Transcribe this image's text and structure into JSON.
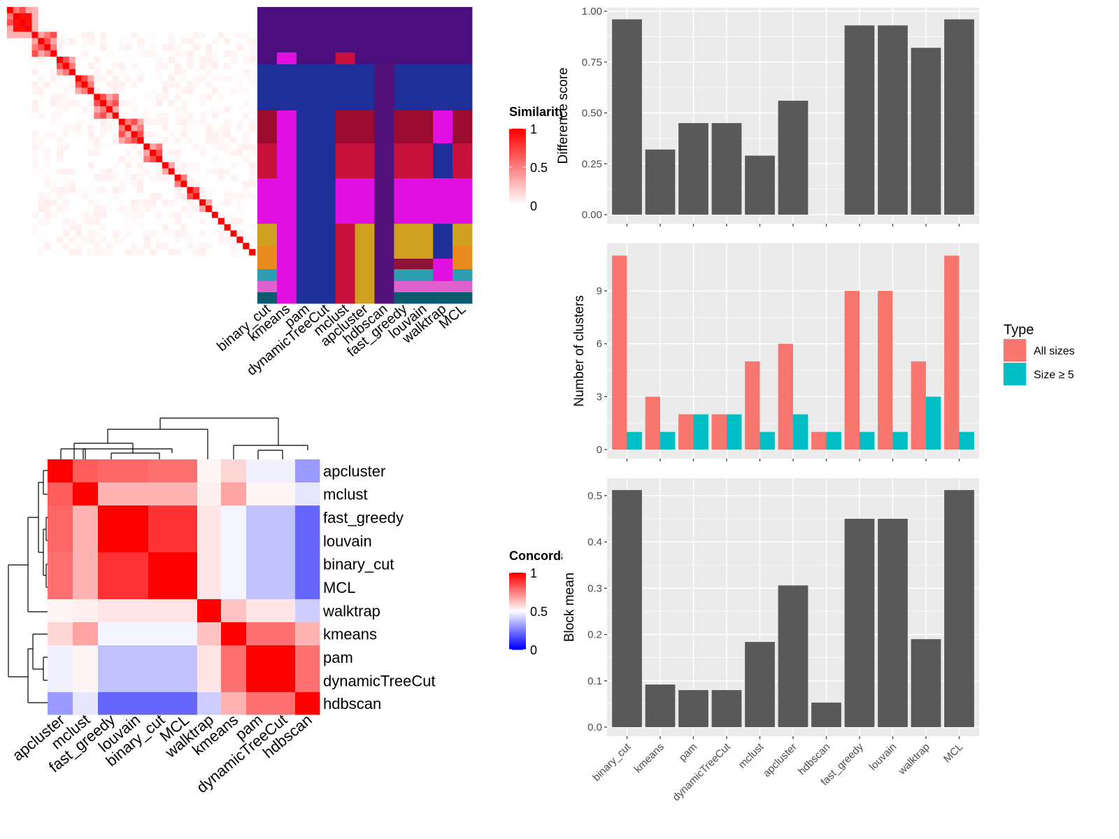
{
  "methods": [
    "binary_cut",
    "kmeans",
    "pam",
    "dynamicTreeCut",
    "mclust",
    "apcluster",
    "hdbscan",
    "fast_greedy",
    "louvain",
    "walktrap",
    "MCL"
  ],
  "similarity_legend": {
    "title": "Similarity",
    "ticks": [
      "1",
      "0.5",
      "0"
    ]
  },
  "concordance_legend": {
    "title": "Concordance",
    "ticks": [
      "1",
      "0.5",
      "0"
    ]
  },
  "type_legend": {
    "title": "Type",
    "items": [
      "All sizes",
      "Size ≥ 5"
    ]
  },
  "colors": {
    "bar": "#595959",
    "all_sizes": "#F8766D",
    "size_ge5": "#00BFC4",
    "panel_bg": "#EBEBEB",
    "heat_high": "#FF0000",
    "heat_low_blue": "#0000FF"
  },
  "chart_data": [
    {
      "type": "heatmap",
      "name": "similarity",
      "size": 40,
      "blocks": [
        [
          0,
          4
        ],
        [
          4,
          8
        ],
        [
          8,
          11
        ],
        [
          11,
          14
        ],
        [
          14,
          18
        ],
        [
          18,
          22
        ],
        [
          22,
          25
        ],
        [
          25,
          27
        ],
        [
          27,
          29
        ],
        [
          29,
          31
        ],
        [
          31,
          33
        ],
        [
          33,
          34
        ],
        [
          34,
          35
        ],
        [
          35,
          36
        ],
        [
          36,
          37
        ],
        [
          37,
          38
        ],
        [
          38,
          39
        ],
        [
          39,
          40
        ]
      ],
      "range": [
        0,
        1
      ]
    },
    {
      "type": "heatmap",
      "name": "cluster_assignment",
      "columns": [
        "binary_cut",
        "kmeans",
        "pam",
        "dynamicTreeCut",
        "mclust",
        "apcluster",
        "hdbscan",
        "fast_greedy",
        "louvain",
        "walktrap",
        "MCL"
      ]
    },
    {
      "type": "bar",
      "categories": [
        "binary_cut",
        "kmeans",
        "pam",
        "dynamicTreeCut",
        "mclust",
        "apcluster",
        "hdbscan",
        "fast_greedy",
        "louvain",
        "walktrap",
        "MCL"
      ],
      "values": [
        0.96,
        0.32,
        0.45,
        0.45,
        0.29,
        0.56,
        0.0,
        0.93,
        0.93,
        0.82,
        0.96
      ],
      "ylabel": "Difference score",
      "ylim": [
        0,
        1.0
      ],
      "yticks": [
        "0.00",
        "0.25",
        "0.50",
        "0.75",
        "1.00"
      ]
    },
    {
      "type": "bar",
      "categories": [
        "binary_cut",
        "kmeans",
        "pam",
        "dynamicTreeCut",
        "mclust",
        "apcluster",
        "hdbscan",
        "fast_greedy",
        "louvain",
        "walktrap",
        "MCL"
      ],
      "series": [
        {
          "name": "All sizes",
          "values": [
            11,
            3,
            2,
            2,
            5,
            6,
            1,
            9,
            9,
            5,
            11
          ]
        },
        {
          "name": "Size ≥ 5",
          "values": [
            1,
            1,
            2,
            2,
            1,
            2,
            1,
            1,
            1,
            3,
            1
          ]
        }
      ],
      "ylabel": "Number of clusters",
      "ylim": [
        0,
        11.5
      ],
      "yticks": [
        "0",
        "3",
        "6",
        "9"
      ],
      "legend": "right"
    },
    {
      "type": "bar",
      "categories": [
        "binary_cut",
        "kmeans",
        "pam",
        "dynamicTreeCut",
        "mclust",
        "apcluster",
        "hdbscan",
        "fast_greedy",
        "louvain",
        "walktrap",
        "MCL"
      ],
      "values": [
        0.512,
        0.092,
        0.08,
        0.08,
        0.184,
        0.306,
        0.053,
        0.45,
        0.45,
        0.19,
        0.512
      ],
      "ylabel": "Block mean",
      "ylim": [
        0,
        0.53
      ],
      "yticks": [
        "0.0",
        "0.1",
        "0.2",
        "0.3",
        "0.4",
        "0.5"
      ]
    },
    {
      "type": "heatmap",
      "name": "concordance",
      "rows": [
        "apcluster",
        "mclust",
        "fast_greedy",
        "louvain",
        "binary_cut",
        "MCL",
        "walktrap",
        "kmeans",
        "pam",
        "dynamicTreeCut",
        "hdbscan"
      ],
      "columns": [
        "apcluster",
        "mclust",
        "fast_greedy",
        "louvain",
        "binary_cut",
        "MCL",
        "walktrap",
        "kmeans",
        "pam",
        "dynamicTreeCut",
        "hdbscan"
      ],
      "values": [
        [
          1.0,
          0.82,
          0.8,
          0.8,
          0.78,
          0.78,
          0.52,
          0.58,
          0.47,
          0.47,
          0.3
        ],
        [
          0.82,
          1.0,
          0.65,
          0.65,
          0.65,
          0.65,
          0.53,
          0.68,
          0.52,
          0.52,
          0.45
        ],
        [
          0.8,
          0.65,
          1.0,
          1.0,
          0.9,
          0.9,
          0.55,
          0.48,
          0.38,
          0.38,
          0.2
        ],
        [
          0.8,
          0.65,
          1.0,
          1.0,
          0.9,
          0.9,
          0.55,
          0.48,
          0.38,
          0.38,
          0.2
        ],
        [
          0.78,
          0.65,
          0.9,
          0.9,
          1.0,
          1.0,
          0.55,
          0.48,
          0.38,
          0.38,
          0.2
        ],
        [
          0.78,
          0.65,
          0.9,
          0.9,
          1.0,
          1.0,
          0.55,
          0.48,
          0.38,
          0.38,
          0.2
        ],
        [
          0.52,
          0.53,
          0.55,
          0.55,
          0.55,
          0.55,
          1.0,
          0.62,
          0.55,
          0.55,
          0.4
        ],
        [
          0.58,
          0.68,
          0.48,
          0.48,
          0.48,
          0.48,
          0.62,
          1.0,
          0.78,
          0.78,
          0.65
        ],
        [
          0.47,
          0.52,
          0.38,
          0.38,
          0.38,
          0.38,
          0.55,
          0.78,
          1.0,
          1.0,
          0.78
        ],
        [
          0.47,
          0.52,
          0.38,
          0.38,
          0.38,
          0.38,
          0.55,
          0.78,
          1.0,
          1.0,
          0.78
        ],
        [
          0.3,
          0.45,
          0.2,
          0.2,
          0.2,
          0.2,
          0.4,
          0.65,
          0.78,
          0.78,
          1.0
        ]
      ],
      "range": [
        0,
        1
      ]
    }
  ]
}
